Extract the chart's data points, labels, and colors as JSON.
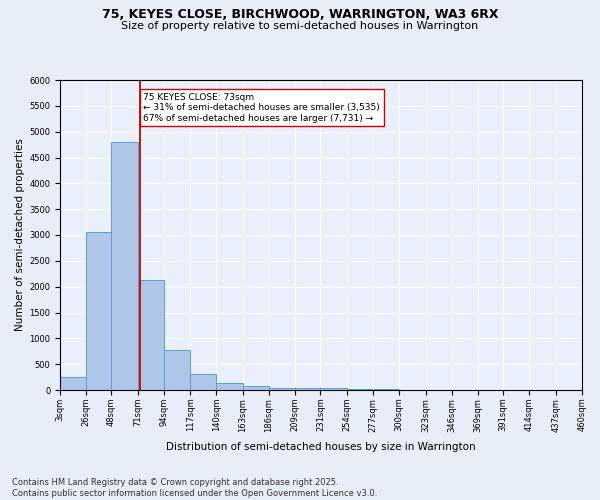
{
  "title1": "75, KEYES CLOSE, BIRCHWOOD, WARRINGTON, WA3 6RX",
  "title2": "Size of property relative to semi-detached houses in Warrington",
  "xlabel": "Distribution of semi-detached houses by size in Warrington",
  "ylabel": "Number of semi-detached properties",
  "footnote": "Contains HM Land Registry data © Crown copyright and database right 2025.\nContains public sector information licensed under the Open Government Licence v3.0.",
  "bins": [
    3,
    26,
    48,
    71,
    94,
    117,
    140,
    163,
    186,
    209,
    231,
    254,
    277,
    300,
    323,
    346,
    369,
    391,
    414,
    437,
    460
  ],
  "bin_labels": [
    "3sqm",
    "26sqm",
    "48sqm",
    "71sqm",
    "94sqm",
    "117sqm",
    "140sqm",
    "163sqm",
    "186sqm",
    "209sqm",
    "231sqm",
    "254sqm",
    "277sqm",
    "300sqm",
    "323sqm",
    "346sqm",
    "369sqm",
    "391sqm",
    "414sqm",
    "437sqm",
    "460sqm"
  ],
  "values": [
    250,
    3050,
    4800,
    2120,
    780,
    310,
    140,
    80,
    40,
    35,
    30,
    20,
    10,
    5,
    5,
    5,
    5,
    5,
    5,
    5
  ],
  "bar_color": "#aec6e8",
  "bar_edge_color": "#5a9fd4",
  "property_sqm": 73,
  "vline_color": "#cc0000",
  "annotation_text": "75 KEYES CLOSE: 73sqm\n← 31% of semi-detached houses are smaller (3,535)\n67% of semi-detached houses are larger (7,731) →",
  "annotation_box_color": "#ffffff",
  "annotation_box_edge": "#cc0000",
  "ylim": [
    0,
    6000
  ],
  "yticks": [
    0,
    500,
    1000,
    1500,
    2000,
    2500,
    3000,
    3500,
    4000,
    4500,
    5000,
    5500,
    6000
  ],
  "bg_color": "#e8eef8",
  "axes_bg_color": "#eaf0fb",
  "grid_color": "#ffffff",
  "title1_fontsize": 9,
  "title2_fontsize": 8,
  "xlabel_fontsize": 7.5,
  "ylabel_fontsize": 7.5,
  "tick_fontsize": 6,
  "annotation_fontsize": 6.5,
  "footnote_fontsize": 6
}
